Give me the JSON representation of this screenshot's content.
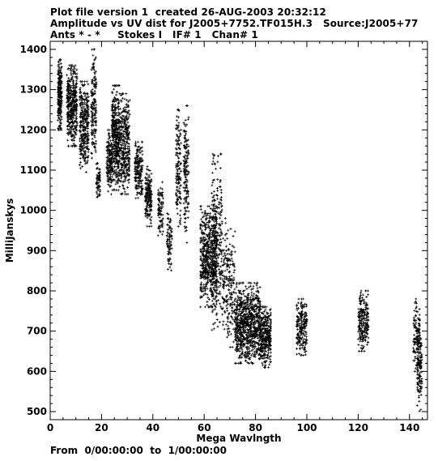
{
  "header": {
    "line1": "Plot file version 1  created 26-AUG-2003 20:32:12",
    "line2": "Amplitude vs UV dist for J2005+7752.TF015H.3   Source:J2005+77",
    "line3": "Ants * - *     Stokes I   IF# 1   Chan# 1"
  },
  "footer": {
    "time_range": "From  0/00:00:00  to  1/00:00:00"
  },
  "chart_data": {
    "type": "scatter",
    "xlabel": "Mega Wavlngth",
    "ylabel": "MilliJanskys",
    "xlim": [
      0,
      147
    ],
    "ylim": [
      480,
      1420
    ],
    "xticks": [
      0,
      20,
      40,
      60,
      80,
      100,
      120,
      140
    ],
    "yticks": [
      500,
      600,
      700,
      800,
      900,
      1000,
      1100,
      1200,
      1300,
      1400
    ],
    "grid": false,
    "marker": "+",
    "color": "#000000",
    "clusters": [
      {
        "x": [
          3,
          4.5
        ],
        "y": [
          1200,
          1375
        ],
        "n": 220
      },
      {
        "x": [
          6.5,
          10.5
        ],
        "y": [
          1160,
          1360
        ],
        "n": 380
      },
      {
        "x": [
          11.5,
          15
        ],
        "y": [
          1090,
          1320
        ],
        "n": 300
      },
      {
        "x": [
          16,
          18
        ],
        "y": [
          1130,
          1400
        ],
        "n": 160
      },
      {
        "x": [
          18,
          19.5
        ],
        "y": [
          1020,
          1140
        ],
        "n": 60
      },
      {
        "x": [
          22,
          24
        ],
        "y": [
          1040,
          1200
        ],
        "n": 140
      },
      {
        "x": [
          24,
          27
        ],
        "y": [
          1050,
          1310
        ],
        "n": 380
      },
      {
        "x": [
          27,
          31
        ],
        "y": [
          1040,
          1290
        ],
        "n": 320
      },
      {
        "x": [
          33,
          36
        ],
        "y": [
          1030,
          1170
        ],
        "n": 180
      },
      {
        "x": [
          37,
          39.5
        ],
        "y": [
          960,
          1110
        ],
        "n": 180
      },
      {
        "x": [
          42,
          44
        ],
        "y": [
          930,
          1070
        ],
        "n": 80
      },
      {
        "x": [
          45.5,
          47.5
        ],
        "y": [
          840,
          1000
        ],
        "n": 80
      },
      {
        "x": [
          49,
          51
        ],
        "y": [
          960,
          1250
        ],
        "n": 140
      },
      {
        "x": [
          52,
          54
        ],
        "y": [
          920,
          1260
        ],
        "n": 150
      },
      {
        "x": [
          58.5,
          65
        ],
        "y": [
          760,
          1010
        ],
        "n": 550
      },
      {
        "x": [
          63,
          67
        ],
        "y": [
          700,
          1140
        ],
        "n": 250
      },
      {
        "x": [
          67,
          72
        ],
        "y": [
          660,
          980
        ],
        "n": 200
      },
      {
        "x": [
          72,
          77
        ],
        "y": [
          620,
          820
        ],
        "n": 400
      },
      {
        "x": [
          77,
          82
        ],
        "y": [
          620,
          820
        ],
        "n": 400
      },
      {
        "x": [
          82,
          86
        ],
        "y": [
          610,
          760
        ],
        "n": 300
      },
      {
        "x": [
          96,
          100
        ],
        "y": [
          640,
          780
        ],
        "n": 200
      },
      {
        "x": [
          120,
          124
        ],
        "y": [
          650,
          800
        ],
        "n": 200
      },
      {
        "x": [
          141.5,
          144
        ],
        "y": [
          600,
          780
        ],
        "n": 120
      },
      {
        "x": [
          143,
          145
        ],
        "y": [
          500,
          730
        ],
        "n": 120
      }
    ]
  }
}
